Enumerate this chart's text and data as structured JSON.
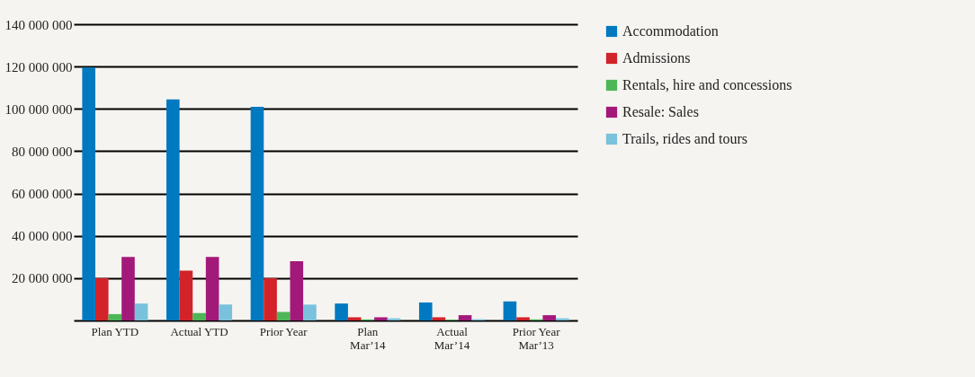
{
  "chart_data": {
    "type": "bar",
    "categories": [
      "Plan YTD",
      "Actual YTD",
      "Prior Year",
      "Plan Mar’14",
      "Actual Mar’14",
      "Prior Year Mar’13"
    ],
    "series": [
      {
        "name": "Accommodation",
        "color": "#0079c1",
        "values": [
          119500000,
          104500000,
          101000000,
          8000000,
          8500000,
          9000000
        ]
      },
      {
        "name": "Admissions",
        "color": "#d2232a",
        "values": [
          20000000,
          23500000,
          20000000,
          1500000,
          1500000,
          1500000
        ]
      },
      {
        "name": "Rentals, hire and concessions",
        "color": "#4db757",
        "values": [
          3000000,
          3500000,
          4000000,
          500000,
          300000,
          500000
        ]
      },
      {
        "name": "Resale: Sales",
        "color": "#a3197a",
        "values": [
          30000000,
          30000000,
          28000000,
          1500000,
          2500000,
          2500000
        ]
      },
      {
        "name": "Trails, rides and tours",
        "color": "#79c1dc",
        "values": [
          8000000,
          7500000,
          7500000,
          1000000,
          600000,
          1000000
        ]
      }
    ],
    "ylim": [
      0,
      140000000
    ],
    "yticks": [
      20000000,
      40000000,
      60000000,
      80000000,
      100000000,
      120000000,
      140000000
    ],
    "grid": "y",
    "legend": "right"
  }
}
